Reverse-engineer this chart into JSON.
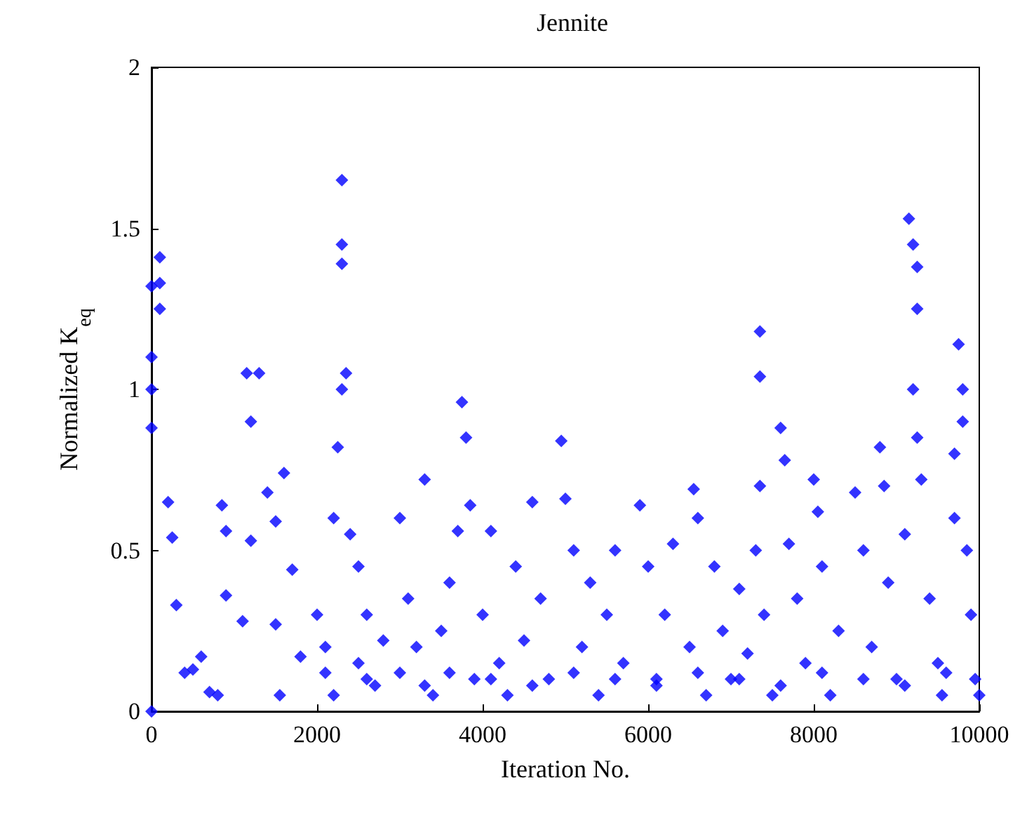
{
  "chart_data": {
    "type": "scatter",
    "title": "Jennite",
    "xlabel": "Iteration No.",
    "ylabel": "Normalized K$_{eq}$",
    "xlim": [
      0,
      10000
    ],
    "xticks": [
      0,
      2000,
      4000,
      6000,
      8000,
      10000
    ],
    "ylim": [
      0,
      2
    ],
    "yticks": [
      0,
      0.5,
      1,
      1.5,
      2
    ],
    "grid": false,
    "marker": "diamond",
    "series": [
      {
        "color": "#0000ff",
        "x": [
          0,
          0,
          0,
          0,
          0,
          100,
          100,
          100,
          200,
          250,
          300,
          400,
          500,
          600,
          700,
          800,
          850,
          900,
          900,
          1100,
          1150,
          1200,
          1200,
          1300,
          1400,
          1500,
          1500,
          1550,
          1600,
          1700,
          1800,
          2000,
          2100,
          2200,
          2300,
          2300,
          2300,
          2300,
          2350,
          2250,
          2200,
          2400,
          2500,
          2500,
          2600,
          2700,
          2800,
          3000,
          3000,
          3100,
          3200,
          3300,
          3400,
          3500,
          3600,
          3700,
          3750,
          3800,
          3850,
          3900,
          4000,
          4100,
          4200,
          4300,
          4400,
          4500,
          4600,
          4700,
          4800,
          4950,
          5000,
          5100,
          5200,
          5300,
          5400,
          5500,
          5600,
          5700,
          5900,
          6000,
          6100,
          6200,
          6300,
          6500,
          6550,
          6600,
          6700,
          6800,
          6900,
          7000,
          7100,
          7200,
          7300,
          7350,
          7350,
          7350,
          7400,
          7500,
          7600,
          7650,
          7700,
          7800,
          7900,
          8000,
          8050,
          8100,
          8200,
          8300,
          8500,
          8600,
          8700,
          8800,
          8850,
          8900,
          9000,
          9100,
          9150,
          9200,
          9250,
          9250,
          9200,
          9250,
          9300,
          9400,
          9500,
          9550,
          9700,
          9700,
          9750,
          9800,
          9800,
          9850,
          9900,
          9950,
          10000,
          2100,
          2600,
          3300,
          3600,
          4100,
          4600,
          5100,
          5600,
          6100,
          6600,
          7100,
          7600,
          8100,
          8600,
          9100,
          9600
        ],
        "values": [
          0,
          0.88,
          1.1,
          1.32,
          1.0,
          1.41,
          1.33,
          1.25,
          0.65,
          0.54,
          0.33,
          0.12,
          0.13,
          0.17,
          0.06,
          0.05,
          0.64,
          0.56,
          0.36,
          0.28,
          1.05,
          0.9,
          0.53,
          1.05,
          0.68,
          0.59,
          0.27,
          0.05,
          0.74,
          0.44,
          0.17,
          0.3,
          0.2,
          0.05,
          1.65,
          1.45,
          1.39,
          1.0,
          1.05,
          0.82,
          0.6,
          0.55,
          0.45,
          0.15,
          0.3,
          0.08,
          0.22,
          0.6,
          0.12,
          0.35,
          0.2,
          0.72,
          0.05,
          0.25,
          0.4,
          0.56,
          0.96,
          0.85,
          0.64,
          0.1,
          0.3,
          0.56,
          0.15,
          0.05,
          0.45,
          0.22,
          0.65,
          0.35,
          0.1,
          0.84,
          0.66,
          0.5,
          0.2,
          0.4,
          0.05,
          0.3,
          0.5,
          0.15,
          0.64,
          0.45,
          0.1,
          0.3,
          0.52,
          0.2,
          0.69,
          0.6,
          0.05,
          0.45,
          0.25,
          0.1,
          0.38,
          0.18,
          0.5,
          1.18,
          1.04,
          0.7,
          0.3,
          0.05,
          0.88,
          0.78,
          0.52,
          0.35,
          0.15,
          0.72,
          0.62,
          0.45,
          0.05,
          0.25,
          0.68,
          0.5,
          0.2,
          0.82,
          0.7,
          0.4,
          0.1,
          0.55,
          1.53,
          1.45,
          1.38,
          1.25,
          1.0,
          0.85,
          0.72,
          0.35,
          0.15,
          0.05,
          0.8,
          0.6,
          1.14,
          1.0,
          0.9,
          0.5,
          0.3,
          0.1,
          0.05,
          0.12,
          0.1,
          0.08,
          0.12,
          0.1,
          0.08,
          0.12,
          0.1,
          0.08,
          0.12,
          0.1,
          0.08,
          0.12,
          0.1,
          0.08,
          0.12
        ]
      }
    ]
  }
}
